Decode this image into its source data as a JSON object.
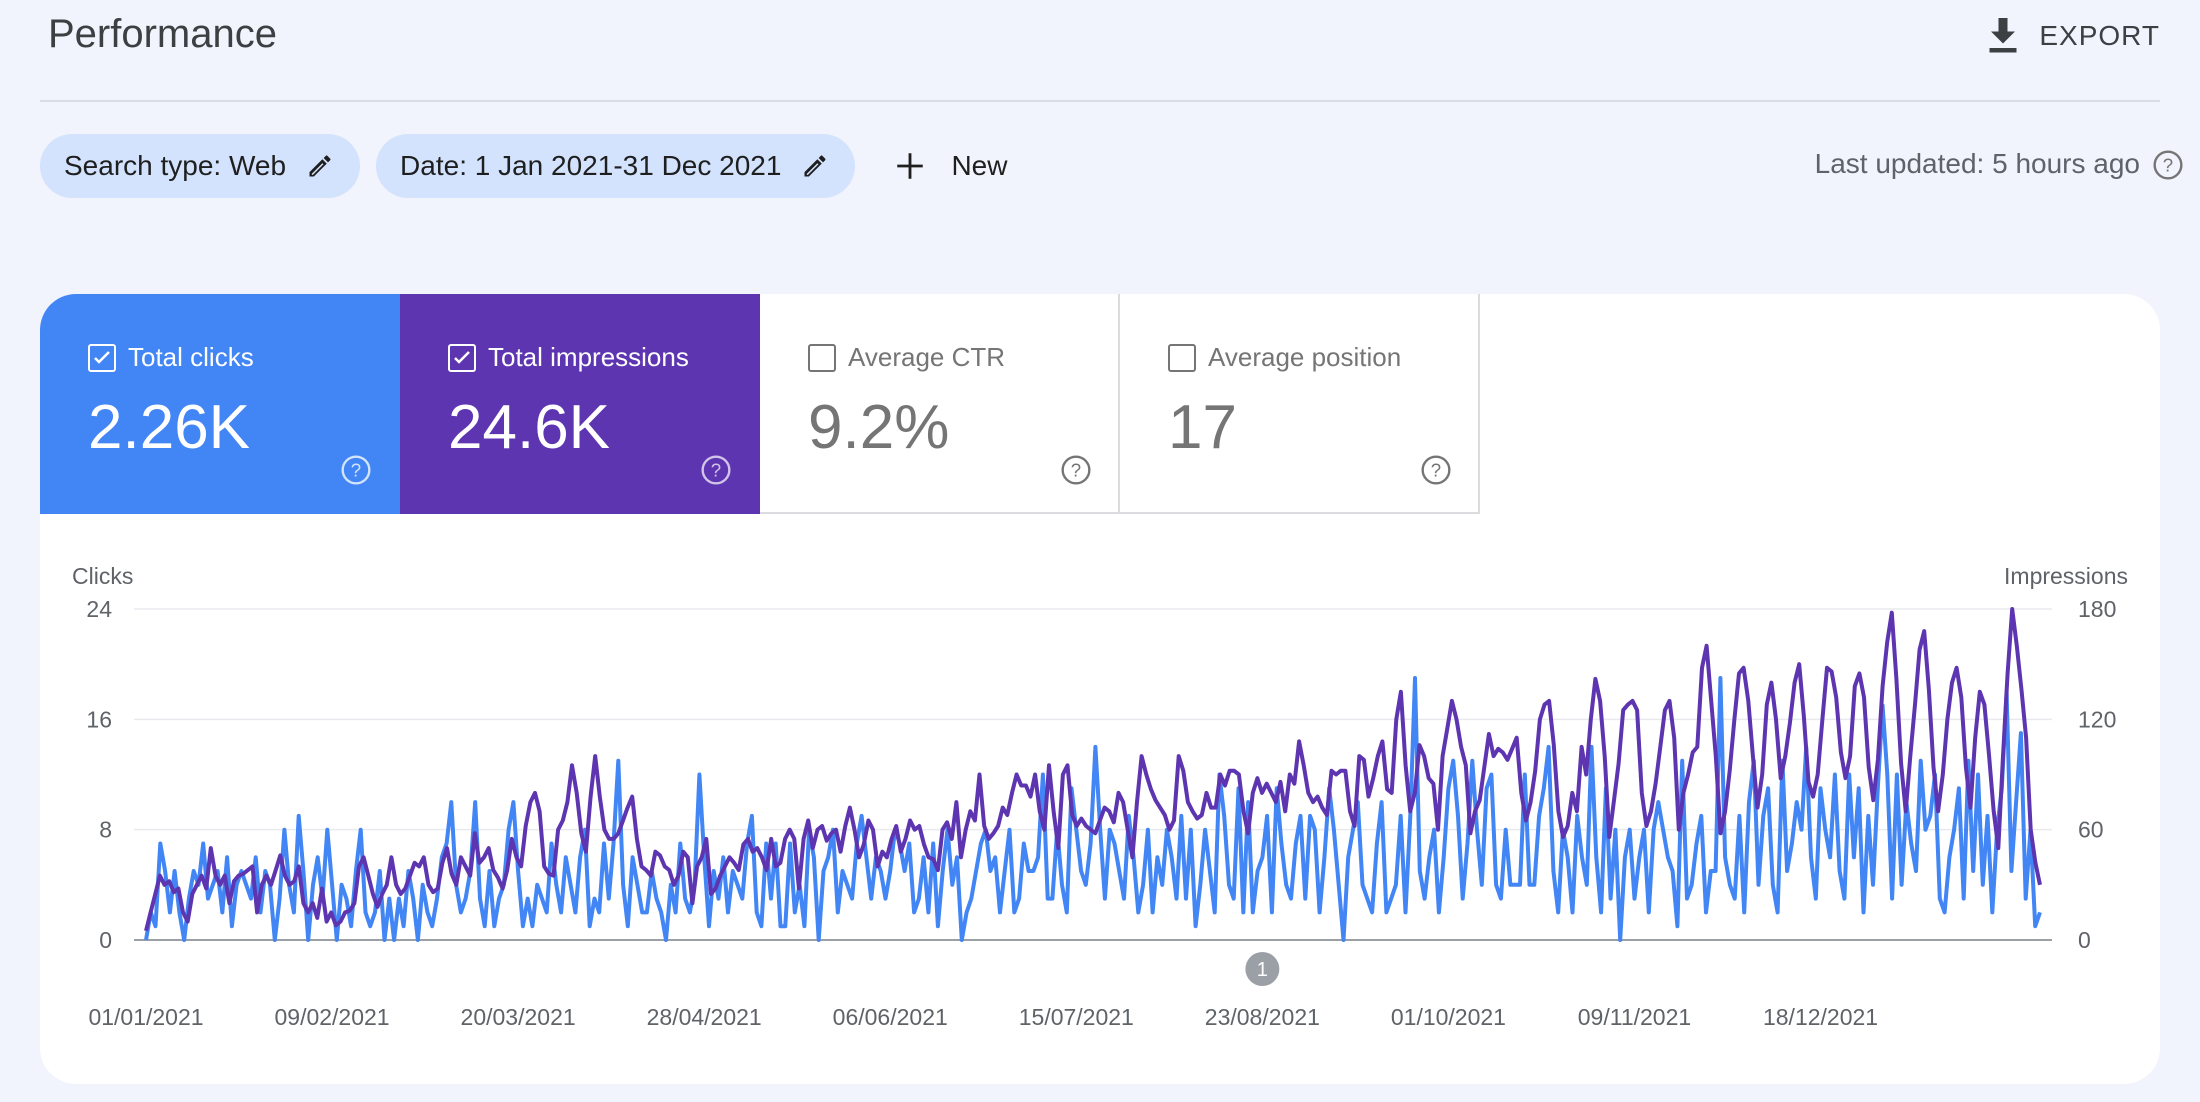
{
  "header": {
    "title": "Performance",
    "export_label": "EXPORT"
  },
  "filters": {
    "search_type": "Search type: Web",
    "date": "Date: 1 Jan 2021-31 Dec 2021",
    "new_label": "New"
  },
  "last_updated": "Last updated: 5 hours ago",
  "metrics": {
    "clicks": {
      "label": "Total clicks",
      "value": "2.26K",
      "checked": true
    },
    "impressions": {
      "label": "Total impressions",
      "value": "24.6K",
      "checked": true
    },
    "ctr": {
      "label": "Average CTR",
      "value": "9.2%",
      "checked": false
    },
    "position": {
      "label": "Average position",
      "value": "17",
      "checked": false
    }
  },
  "colors": {
    "clicks": "#4285f4",
    "impressions": "#5e35b1",
    "background": "#f1f4fc"
  },
  "chart_data": {
    "type": "line",
    "left_axis_label": "Clicks",
    "right_axis_label": "Impressions",
    "left_ticks": [
      "0",
      "8",
      "16",
      "24"
    ],
    "right_ticks": [
      "0",
      "60",
      "120",
      "180"
    ],
    "ylim_left": [
      0,
      24
    ],
    "ylim_right": [
      0,
      180
    ],
    "x_tick_labels": [
      "01/01/2021",
      "09/02/2021",
      "20/03/2021",
      "28/04/2021",
      "06/06/2021",
      "15/07/2021",
      "23/08/2021",
      "01/10/2021",
      "09/11/2021",
      "18/12/2021"
    ],
    "annotation": {
      "label": "1",
      "date": "23/08/2021"
    },
    "grid": true,
    "series": [
      {
        "name": "Total clicks",
        "axis": "left",
        "values": [
          0,
          2,
          1,
          7,
          5,
          2,
          5,
          2,
          0,
          3,
          5,
          4,
          7,
          3,
          4,
          5,
          2,
          6,
          1,
          4,
          5,
          4,
          3,
          6,
          2,
          5,
          4,
          0,
          3,
          8,
          4,
          2,
          9,
          5,
          0,
          4,
          6,
          3,
          8,
          4,
          0,
          4,
          3,
          1,
          5,
          8,
          2,
          1,
          2,
          5,
          0,
          3,
          0,
          3,
          1,
          5,
          3,
          0,
          4,
          2,
          1,
          3,
          6,
          7,
          10,
          4,
          2,
          3,
          5,
          10,
          3,
          1,
          5,
          1,
          3,
          4,
          8,
          10,
          5,
          1,
          3,
          1,
          4,
          3,
          2,
          7,
          4,
          2,
          6,
          4,
          2,
          6,
          8,
          1,
          3,
          2,
          7,
          3,
          7,
          13,
          4,
          1,
          6,
          4,
          2,
          2,
          5,
          3,
          2,
          0,
          4,
          2,
          7,
          3,
          2,
          4,
          12,
          6,
          1,
          5,
          3,
          6,
          2,
          5,
          4,
          3,
          7,
          9,
          2,
          1,
          7,
          3,
          7,
          1,
          1,
          7,
          2,
          4,
          1,
          8,
          6,
          0,
          5,
          6,
          8,
          2,
          5,
          4,
          3,
          7,
          9,
          6,
          3,
          6,
          5,
          3,
          5,
          8,
          7,
          5,
          7,
          2,
          3,
          6,
          2,
          7,
          1,
          5,
          8,
          4,
          6,
          0,
          2,
          3,
          5,
          7,
          8,
          5,
          6,
          2,
          5,
          8,
          2,
          3,
          7,
          5,
          5,
          6,
          12,
          3,
          3,
          8,
          4,
          2,
          11,
          8,
          5,
          4,
          7,
          14,
          8,
          3,
          8,
          7,
          5,
          3,
          9,
          6,
          2,
          4,
          8,
          2,
          6,
          4,
          8,
          6,
          3,
          9,
          3,
          8,
          1,
          4,
          8,
          5,
          2,
          12,
          9,
          4,
          3,
          11,
          2,
          10,
          2,
          5,
          6,
          9,
          2,
          11,
          7,
          4,
          3,
          7,
          9,
          3,
          9,
          8,
          2,
          6,
          11,
          8,
          4,
          0,
          6,
          8,
          10,
          4,
          3,
          2,
          7,
          10,
          2,
          3,
          4,
          9,
          2,
          9,
          19,
          5,
          3,
          6,
          8,
          2,
          6,
          11,
          13,
          9,
          3,
          7,
          13,
          8,
          4,
          11,
          12,
          4,
          3,
          8,
          4,
          4,
          4,
          12,
          4,
          4,
          9,
          11,
          14,
          5,
          2,
          8,
          6,
          2,
          9,
          6,
          4,
          14,
          6,
          2,
          11,
          3,
          8,
          0,
          6,
          8,
          3,
          6,
          8,
          2,
          8,
          10,
          8,
          6,
          5,
          1,
          13,
          3,
          4,
          7,
          9,
          2,
          5,
          5,
          19,
          6,
          4,
          3,
          9,
          2,
          10,
          13,
          4,
          9,
          11,
          4,
          2,
          13,
          5,
          7,
          10,
          8,
          14,
          6,
          3,
          11,
          8,
          6,
          12,
          5,
          3,
          12,
          6,
          11,
          2,
          9,
          4,
          11,
          17,
          12,
          3,
          12,
          4,
          10,
          7,
          5,
          13,
          8,
          9,
          12,
          3,
          2,
          6,
          8,
          11,
          3,
          13,
          5,
          12,
          4,
          9,
          2,
          8,
          11,
          18,
          5,
          10,
          15,
          3,
          8,
          1,
          2
        ],
        "source_note": ""
      },
      {
        "name": "Total impressions",
        "axis": "right",
        "values": [
          5,
          15,
          25,
          35,
          30,
          32,
          26,
          28,
          15,
          10,
          25,
          30,
          35,
          28,
          50,
          35,
          30,
          35,
          20,
          32,
          35,
          36,
          38,
          40,
          15,
          30,
          35,
          30,
          38,
          46,
          35,
          30,
          32,
          40,
          20,
          15,
          20,
          12,
          28,
          10,
          15,
          8,
          10,
          15,
          16,
          20,
          40,
          45,
          35,
          25,
          18,
          25,
          30,
          45,
          30,
          25,
          28,
          35,
          42,
          40,
          45,
          30,
          26,
          28,
          42,
          50,
          36,
          30,
          45,
          40,
          35,
          58,
          42,
          45,
          50,
          38,
          34,
          28,
          38,
          55,
          45,
          40,
          62,
          75,
          80,
          70,
          40,
          36,
          35,
          60,
          65,
          75,
          95,
          80,
          58,
          48,
          78,
          100,
          78,
          60,
          55,
          55,
          58,
          65,
          72,
          78,
          55,
          40,
          38,
          35,
          48,
          46,
          40,
          38,
          30,
          35,
          48,
          45,
          20,
          40,
          45,
          55,
          25,
          28,
          35,
          40,
          45,
          42,
          38,
          52,
          55,
          48,
          50,
          45,
          38,
          55,
          40,
          42,
          55,
          60,
          55,
          28,
          55,
          65,
          50,
          60,
          62,
          54,
          58,
          60,
          48,
          62,
          72,
          60,
          45,
          52,
          65,
          60,
          40,
          48,
          45,
          55,
          62,
          48,
          55,
          65,
          60,
          62,
          52,
          45,
          44,
          38,
          60,
          64,
          55,
          75,
          45,
          60,
          70,
          65,
          90,
          62,
          55,
          58,
          62,
          72,
          68,
          80,
          90,
          84,
          84,
          78,
          90,
          70,
          60,
          95,
          70,
          50,
          90,
          95,
          68,
          62,
          66,
          62,
          60,
          58,
          65,
          72,
          70,
          64,
          80,
          75,
          60,
          45,
          75,
          100,
          90,
          82,
          76,
          72,
          68,
          60,
          65,
          100,
          92,
          75,
          70,
          66,
          68,
          80,
          72,
          72,
          90,
          84,
          92,
          92,
          90,
          70,
          58,
          80,
          88,
          80,
          85,
          80,
          75,
          86,
          70,
          90,
          85,
          108,
          95,
          80,
          75,
          78,
          72,
          68,
          92,
          90,
          92,
          92,
          70,
          62,
          100,
          98,
          78,
          88,
          100,
          108,
          82,
          80,
          120,
          135,
          95,
          70,
          80,
          106,
          100,
          88,
          85,
          60,
          100,
          115,
          130,
          120,
          105,
          95,
          58,
          70,
          76,
          94,
          112,
          100,
          104,
          102,
          98,
          104,
          110,
          80,
          65,
          75,
          92,
          120,
          128,
          130,
          106,
          70,
          56,
          62,
          80,
          70,
          105,
          90,
          120,
          142,
          130,
          100,
          56,
          76,
          96,
          125,
          128,
          130,
          125,
          80,
          62,
          70,
          85,
          105,
          125,
          130,
          110,
          60,
          80,
          90,
          102,
          105,
          148,
          160,
          130,
          100,
          58,
          70,
          92,
          120,
          145,
          148,
          130,
          100,
          72,
          90,
          128,
          140,
          120,
          88,
          100,
          118,
          140,
          150,
          122,
          86,
          78,
          90,
          120,
          148,
          146,
          132,
          102,
          88,
          100,
          138,
          145,
          132,
          94,
          76,
          98,
          138,
          162,
          178,
          142,
          96,
          70,
          100,
          128,
          158,
          168,
          136,
          94,
          70,
          90,
          120,
          140,
          148,
          132,
          94,
          72,
          110,
          135,
          128,
          100,
          70,
          50,
          100,
          145,
          180,
          160,
          136,
          110,
          60,
          42,
          30
        ]
      }
    ]
  }
}
